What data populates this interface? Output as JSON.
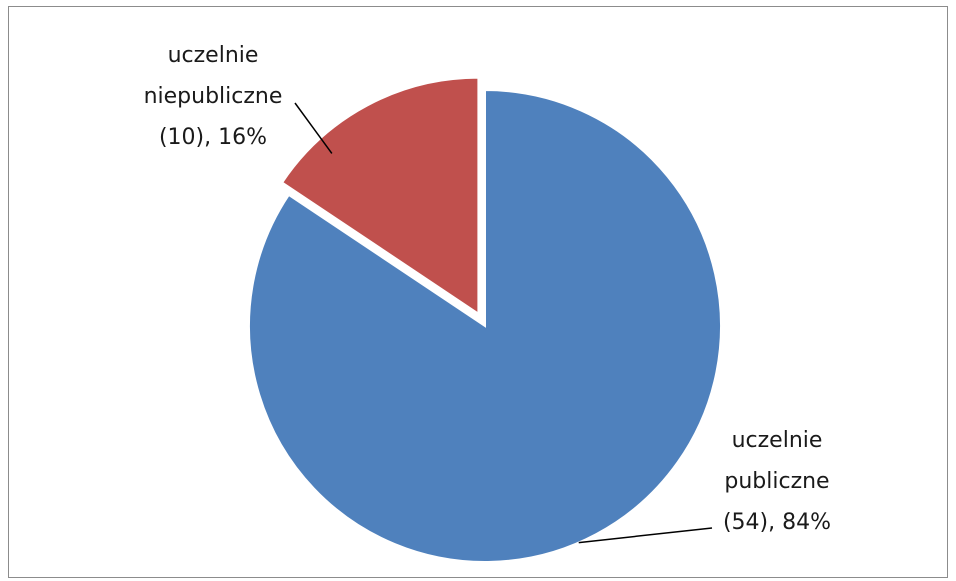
{
  "chart_data": {
    "type": "pie",
    "title": "",
    "slices": [
      {
        "category": "uczelnie publiczne",
        "value": 54,
        "percent": 84,
        "label_lines": [
          "uczelnie",
          "publiczne",
          "(54), 84%"
        ],
        "color": "#4F81BD",
        "exploded": false
      },
      {
        "category": "uczelnie niepubliczne",
        "value": 10,
        "percent": 16,
        "label_lines": [
          "uczelnie",
          "niepubliczne",
          "(10), 16%"
        ],
        "color": "#C0504D",
        "exploded": true
      }
    ],
    "legend": "none"
  }
}
